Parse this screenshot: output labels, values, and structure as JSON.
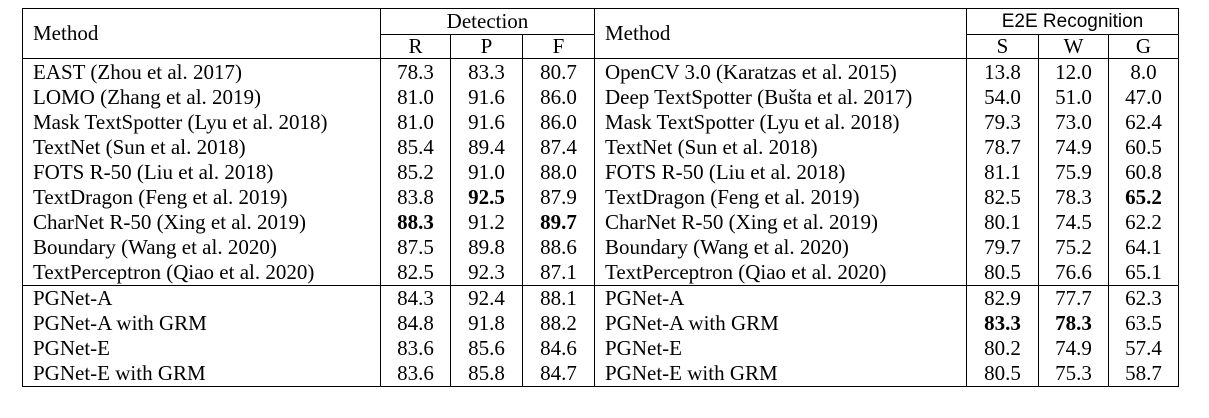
{
  "header": {
    "left": {
      "method": "Method",
      "group": "Detection",
      "cols": [
        "R",
        "P",
        "F"
      ]
    },
    "right": {
      "method": "Method",
      "group": "E2E Recognition",
      "cols": [
        "S",
        "W",
        "G"
      ]
    }
  },
  "table": {
    "rows": [
      [
        "EAST (Zhou et al. 2017)",
        "78.3",
        "83.3",
        "80.7",
        "OpenCV 3.0 (Karatzas et al. 2015)",
        "13.8",
        "12.0",
        "8.0"
      ],
      [
        "LOMO (Zhang et al. 2019)",
        "81.0",
        "91.6",
        "86.0",
        "Deep TextSpotter (Bušta et al. 2017)",
        "54.0",
        "51.0",
        "47.0"
      ],
      [
        "Mask TextSpotter (Lyu et al. 2018)",
        "81.0",
        "91.6",
        "86.0",
        "Mask TextSpotter (Lyu et al. 2018)",
        "79.3",
        "73.0",
        "62.4"
      ],
      [
        "TextNet (Sun et al. 2018)",
        "85.4",
        "89.4",
        "87.4",
        "TextNet (Sun et al. 2018)",
        "78.7",
        "74.9",
        "60.5"
      ],
      [
        "FOTS R-50 (Liu et al. 2018)",
        "85.2",
        "91.0",
        "88.0",
        "FOTS R-50 (Liu et al. 2018)",
        "81.1",
        "75.9",
        "60.8"
      ],
      [
        "TextDragon (Feng et al. 2019)",
        "83.8",
        "92.5",
        "87.9",
        "TextDragon (Feng et al. 2019)",
        "82.5",
        "78.3",
        "65.2"
      ],
      [
        "CharNet R-50 (Xing et al. 2019)",
        "88.3",
        "91.2",
        "89.7",
        "CharNet R-50 (Xing et al. 2019)",
        "80.1",
        "74.5",
        "62.2"
      ],
      [
        "Boundary (Wang et al. 2020)",
        "87.5",
        "89.8",
        "88.6",
        "Boundary (Wang et al. 2020)",
        "79.7",
        "75.2",
        "64.1"
      ],
      [
        "TextPerceptron (Qiao et al. 2020)",
        "82.5",
        "92.3",
        "87.1",
        "TextPerceptron (Qiao et al. 2020)",
        "80.5",
        "76.6",
        "65.1"
      ],
      [
        "PGNet-A",
        "84.3",
        "92.4",
        "88.1",
        "PGNet-A",
        "82.9",
        "77.7",
        "62.3"
      ],
      [
        "PGNet-A with GRM",
        "84.8",
        "91.8",
        "88.2",
        "PGNet-A with GRM",
        "83.3",
        "78.3",
        "63.5"
      ],
      [
        "PGNet-E",
        "83.6",
        "85.6",
        "84.6",
        "PGNet-E",
        "80.2",
        "74.9",
        "57.4"
      ],
      [
        "PGNet-E with GRM",
        "83.6",
        "85.8",
        "84.7",
        "PGNet-E with GRM",
        "80.5",
        "75.3",
        "58.7"
      ]
    ]
  }
}
